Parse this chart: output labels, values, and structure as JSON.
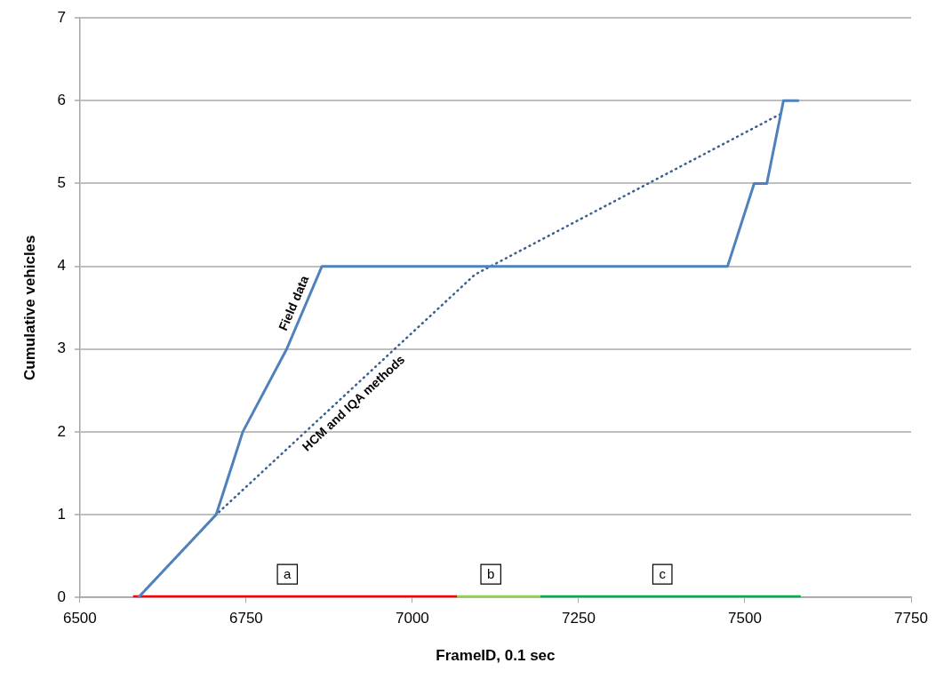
{
  "chart_data": {
    "type": "line",
    "xlabel": "FrameID, 0.1 sec",
    "ylabel": "Cumulative vehicles",
    "xlim": [
      6500,
      7750
    ],
    "xticks": [
      6500,
      6750,
      7000,
      7250,
      7500,
      7750
    ],
    "ylim": [
      0,
      7
    ],
    "yticks": [
      0,
      1,
      2,
      3,
      4,
      5,
      6,
      7
    ],
    "grid": "y",
    "legend": false,
    "marker": "none",
    "series": [
      {
        "name": "Field data",
        "color": "#4f81bd",
        "line_style": "solid",
        "x": [
          6588,
          6705,
          6745,
          6811,
          6864,
          7474,
          7514,
          7533,
          7558,
          7580
        ],
        "values": [
          0,
          1,
          2,
          3,
          4,
          4,
          5,
          5,
          6,
          6
        ]
      },
      {
        "name": "HCM and IQA methods",
        "color": "#3a5f8f",
        "line_style": "dotted",
        "x": [
          6588,
          6705,
          7094,
          7556
        ],
        "values": [
          0,
          1,
          3.9,
          5.85
        ]
      },
      {
        "type": "line",
        "color": "#ff0000",
        "line_style": "solid",
        "x": [
          6580,
          7067
        ],
        "values": [
          0,
          0
        ]
      },
      {
        "type": "line",
        "color": "#92d050",
        "line_style": "solid",
        "x": [
          7067,
          7192
        ],
        "values": [
          0,
          0
        ]
      },
      {
        "type": "line",
        "color": "#00b050",
        "line_style": "solid",
        "x": [
          7192,
          7584
        ],
        "values": [
          0,
          0
        ]
      }
    ],
    "annotations": [
      {
        "text": "a",
        "x": 6812,
        "y": 0.28
      },
      {
        "text": "b",
        "x": 7118,
        "y": 0.28
      },
      {
        "text": "c",
        "x": 7376,
        "y": 0.28
      }
    ]
  }
}
